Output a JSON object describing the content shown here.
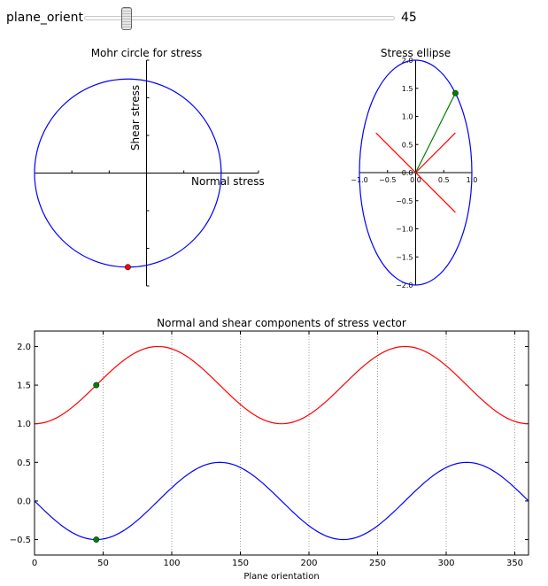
{
  "slider": {
    "label": "plane_orient",
    "value": 45,
    "range": [
      0,
      360
    ]
  },
  "chart_data": [
    {
      "type": "line",
      "title": "Mohr circle for stress",
      "xlabel": "Normal stress",
      "ylabel": "Shear stress",
      "circle": {
        "center": [
          -0.5,
          0
        ],
        "radius": 2.5
      },
      "marker": {
        "x": -0.5,
        "y": -2.5,
        "color": "#ff0000"
      },
      "xlim": [
        -3,
        3
      ],
      "ylim": [
        -3,
        3
      ],
      "color": "#0000ff"
    },
    {
      "type": "line",
      "title": "Stress ellipse",
      "ellipse": {
        "rx": 1,
        "ry": 2
      },
      "xlim": [
        -1,
        1
      ],
      "ylim": [
        -2,
        2
      ],
      "xticks": [
        -1.0,
        -0.5,
        0.0,
        0.5,
        1.0
      ],
      "xtick_labels": [
        "−1.0",
        "−0.5",
        "0.0",
        "0.5",
        "1.0"
      ],
      "yticks": [
        2.0,
        1.5,
        1.0,
        0.5,
        0.0,
        -0.5,
        -1.0,
        -1.5,
        -2.0
      ],
      "ytick_labels": [
        "2.0",
        "1.5",
        "1.0",
        "0.5",
        "0.0",
        "−0.5",
        "−1.0",
        "−1.5",
        "−2.0"
      ],
      "red_lines": [
        {
          "from": [
            -0.707,
            0.707
          ],
          "to": [
            0.707,
            -0.707
          ]
        },
        {
          "from": [
            0,
            0
          ],
          "to": [
            0.707,
            0.707
          ]
        }
      ],
      "vector": {
        "from": [
          0,
          0
        ],
        "to": [
          0.707,
          1.414
        ],
        "color": "#008000"
      },
      "ellipse_color": "#0000ff"
    },
    {
      "type": "line",
      "title": "Normal and shear components of stress vector",
      "xlabel": "Plane orientation",
      "xlim": [
        0,
        360
      ],
      "ylim": [
        -0.7,
        2.2
      ],
      "xticks": [
        0,
        50,
        100,
        150,
        200,
        250,
        300,
        350
      ],
      "xtick_labels": [
        "0",
        "50",
        "100",
        "150",
        "200",
        "250",
        "300",
        "350"
      ],
      "yticks": [
        -0.5,
        0.0,
        0.5,
        1.0,
        1.5,
        2.0
      ],
      "ytick_labels": [
        "−0.5",
        "0.0",
        "0.5",
        "1.0",
        "1.5",
        "2.0"
      ],
      "vgrid_dotted_at": [
        50,
        100,
        150,
        200,
        250,
        300,
        350
      ],
      "series": [
        {
          "formula": "1.5 - 0.5*cos(2θ)",
          "color": "#ff0000",
          "x": [
            0,
            45,
            90,
            135,
            180,
            225,
            270,
            315,
            360
          ],
          "y": [
            1.0,
            1.5,
            2.0,
            1.5,
            1.0,
            1.5,
            2.0,
            1.5,
            1.0
          ]
        },
        {
          "formula": "-0.5*sin(2θ)",
          "color": "#0000ff",
          "x": [
            0,
            45,
            90,
            135,
            180,
            225,
            270,
            315,
            360
          ],
          "y": [
            0.0,
            -0.5,
            0.0,
            0.5,
            0.0,
            -0.5,
            0.0,
            0.5,
            0.0
          ]
        }
      ],
      "markers": [
        {
          "x": 45,
          "y": 1.5,
          "color": "#008000"
        },
        {
          "x": 45,
          "y": -0.5,
          "color": "#008000"
        }
      ]
    }
  ]
}
